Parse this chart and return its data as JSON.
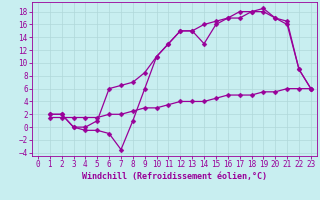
{
  "xlabel": "Windchill (Refroidissement éolien,°C)",
  "bg_color": "#c8eef0",
  "grid_color": "#b0d8da",
  "line_color": "#990099",
  "xlim": [
    -0.5,
    23.5
  ],
  "ylim": [
    -4.5,
    19.5
  ],
  "xticks": [
    0,
    1,
    2,
    3,
    4,
    5,
    6,
    7,
    8,
    9,
    10,
    11,
    12,
    13,
    14,
    15,
    16,
    17,
    18,
    19,
    20,
    21,
    22,
    23
  ],
  "yticks": [
    -4,
    -2,
    0,
    2,
    4,
    6,
    8,
    10,
    12,
    14,
    16,
    18
  ],
  "line1_x": [
    1,
    2,
    3,
    4,
    5,
    6,
    7,
    8,
    9,
    10,
    11,
    12,
    13,
    14,
    15,
    16,
    17,
    18,
    19,
    20,
    21,
    22,
    23
  ],
  "line1_y": [
    2,
    2,
    0,
    -0.5,
    -0.5,
    -1,
    -3.5,
    1,
    6,
    11,
    13,
    15,
    15,
    13,
    16,
    17,
    17,
    18,
    18.5,
    17,
    16,
    9,
    6
  ],
  "line2_x": [
    1,
    2,
    3,
    4,
    5,
    6,
    7,
    8,
    9,
    10,
    11,
    12,
    13,
    14,
    15,
    16,
    17,
    18,
    19,
    20,
    21,
    22,
    23
  ],
  "line2_y": [
    2,
    2,
    0,
    0,
    1,
    6,
    6.5,
    7,
    8.5,
    11,
    13,
    15,
    15,
    16,
    16.5,
    17,
    18,
    18,
    18,
    17,
    16.5,
    9,
    6
  ],
  "line3_x": [
    1,
    2,
    3,
    4,
    5,
    6,
    7,
    8,
    9,
    10,
    11,
    12,
    13,
    14,
    15,
    16,
    17,
    18,
    19,
    20,
    21,
    22,
    23
  ],
  "line3_y": [
    1.5,
    1.5,
    1.5,
    1.5,
    1.5,
    2,
    2,
    2.5,
    3,
    3,
    3.5,
    4,
    4,
    4,
    4.5,
    5,
    5,
    5,
    5.5,
    5.5,
    6,
    6,
    6
  ],
  "markersize": 2.5,
  "linewidth": 0.9,
  "xlabel_fontsize": 6.0,
  "tick_fontsize": 5.5
}
